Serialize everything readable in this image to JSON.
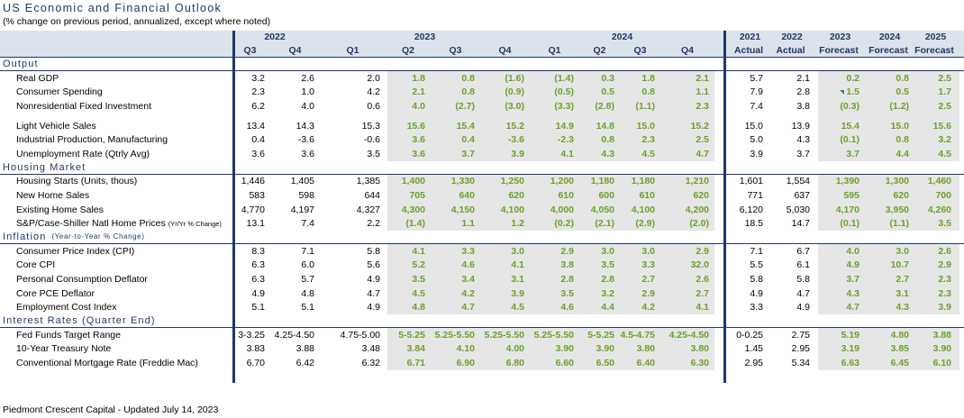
{
  "title": "US Economic and Financial Outlook",
  "subtitle": "(% change on previous  period, annualized, except where noted)",
  "years": {
    "y2022": "2022",
    "y2023": "2023",
    "y2024": "2024"
  },
  "annual_headers": [
    [
      "2021",
      "Actual"
    ],
    [
      "2022",
      "Actual"
    ],
    [
      "2023",
      "Forecast"
    ],
    [
      "2024",
      "Forecast"
    ],
    [
      "2025",
      "Forecast"
    ]
  ],
  "quarters": [
    "Q3",
    "Q4",
    "Q1",
    "Q2",
    "Q3",
    "Q4",
    "Q1",
    "Q2",
    "Q3",
    "Q4"
  ],
  "sections": [
    {
      "name": "Output",
      "note": "",
      "rows": [
        {
          "label": "Real GDP",
          "values": [
            "3.2",
            "2.6",
            "2.0",
            "1.8",
            "0.8",
            "(1.6)",
            "(1.4)",
            "0.3",
            "1.8",
            "2.1",
            "5.7",
            "2.1",
            "0.2",
            "0.8",
            "2.5"
          ]
        },
        {
          "label": "Consumer Spending",
          "values": [
            "2.3",
            "1.0",
            "4.2",
            "2.1",
            "0.8",
            "(0.9)",
            "(0.5)",
            "0.5",
            "0.8",
            "1.1",
            "7.9",
            "2.8",
            "1.5",
            "0.5",
            "1.7"
          ]
        },
        {
          "label": "Nonresidential Fixed Investment",
          "values": [
            "6.2",
            "4.0",
            "0.6",
            "4.0",
            "(2.7)",
            "(3.0)",
            "(3.3)",
            "(2.8)",
            "(1.1)",
            "2.3",
            "7.4",
            "3.8",
            "(0.3)",
            "(1.2)",
            "2.5"
          ]
        },
        {
          "gap": true
        },
        {
          "label": "Light Vehicle Sales",
          "values": [
            "13.4",
            "14.3",
            "15.3",
            "15.6",
            "15.4",
            "15.2",
            "14.9",
            "14.8",
            "15.0",
            "15.2",
            "15.0",
            "13.9",
            "15.4",
            "15.0",
            "15.6"
          ]
        },
        {
          "label": "Industrial Production, Manufacturing",
          "values": [
            "0.4",
            "-3.6",
            "-0.6",
            "3.6",
            "0.4",
            "-3.6",
            "-2.3",
            "0.8",
            "2.3",
            "2.5",
            "5.0",
            "4.3",
            "(0.1)",
            "0.8",
            "3.2"
          ]
        },
        {
          "label": "Unemployment Rate (Qtrly Avg)",
          "values": [
            "3.6",
            "3.6",
            "3.5",
            "3.6",
            "3.7",
            "3.9",
            "4.1",
            "4.3",
            "4.5",
            "4.7",
            "3.9",
            "3.7",
            "3.7",
            "4.4",
            "4.5"
          ]
        }
      ]
    },
    {
      "name": "Housing Market",
      "note": "",
      "rows": [
        {
          "label": "Housing Starts (Units, thous)",
          "values": [
            "1,446",
            "1,405",
            "1,385",
            "1,400",
            "1,330",
            "1,250",
            "1,200",
            "1,180",
            "1,180",
            "1,210",
            "1,601",
            "1,554",
            "1,390",
            "1,300",
            "1,460"
          ]
        },
        {
          "label": "New Home Sales",
          "values": [
            "583",
            "598",
            "644",
            "705",
            "640",
            "620",
            "610",
            "600",
            "610",
            "620",
            "771",
            "637",
            "595",
            "620",
            "700"
          ]
        },
        {
          "label": "Existing Home Sales",
          "values": [
            "4,770",
            "4,197",
            "4,327",
            "4,300",
            "4,150",
            "4,100",
            "4,000",
            "4,050",
            "4,100",
            "4,200",
            "6,120",
            "5,030",
            "4,170",
            "3,950",
            "4,260"
          ]
        },
        {
          "label": "S&P/Case-Shiller Natl Home Prices",
          "label_small": "(Yr/Yr % Change)",
          "values": [
            "13.1",
            "7.4",
            "2.2",
            "(1.4)",
            "1.1",
            "1.2",
            "(0.2)",
            "(2.1)",
            "(2.9)",
            "(2.0)",
            "18.5",
            "14.7",
            "(0.1)",
            "(1.1)",
            "3.5"
          ]
        }
      ]
    },
    {
      "name": "Inflation",
      "note": "(Year-to-Year % Change)",
      "rows": [
        {
          "label": "Consumer Price Index (CPI)",
          "values": [
            "8.3",
            "7.1",
            "5.8",
            "4.1",
            "3.3",
            "3.0",
            "2.9",
            "3.0",
            "3.0",
            "2.9",
            "7.1",
            "6.7",
            "4.0",
            "3.0",
            "2.6"
          ]
        },
        {
          "label": "Core CPI",
          "values": [
            "6.3",
            "6.0",
            "5.6",
            "5.2",
            "4.6",
            "4.1",
            "3.8",
            "3.5",
            "3.3",
            "32.0",
            "5.5",
            "6.1",
            "4.9",
            "10.7",
            "2.9"
          ]
        },
        {
          "label": "Personal Consumption Deflator",
          "values": [
            "6.3",
            "5.7",
            "4.9",
            "3.5",
            "3.4",
            "3.1",
            "2.8",
            "2.8",
            "2.7",
            "2.6",
            "5.8",
            "5.8",
            "3.7",
            "2.7",
            "2.3"
          ]
        },
        {
          "label": "Core PCE Deflator",
          "values": [
            "4.9",
            "4.8",
            "4.7",
            "4.5",
            "4.2",
            "3.9",
            "3.5",
            "3.2",
            "2.9",
            "2.7",
            "4.9",
            "4.7",
            "4.3",
            "3.1",
            "2.3"
          ]
        },
        {
          "label": "Employment Cost Index",
          "values": [
            "5.1",
            "5.1",
            "4.9",
            "4.8",
            "4.7",
            "4.5",
            "4.6",
            "4.4",
            "4.2",
            "4.1",
            "3.3",
            "4.9",
            "4.7",
            "4.3",
            "3.9"
          ]
        }
      ]
    },
    {
      "name": "Interest Rates (Quarter End)",
      "note": "",
      "rows": [
        {
          "label": "Fed Funds Target Range",
          "values": [
            "3-3.25",
            "4.25-4.50",
            "4.75-5.00",
            "5-5.25",
            "5.25-5.50",
            "5.25-5.50",
            "5.25-5.50",
            "5-5.25",
            "4.5-4.75",
            "4.25-4.50",
            "0-0.25",
            "2.75",
            "5.19",
            "4.80",
            "3.88"
          ]
        },
        {
          "label": "10-Year Treasury Note",
          "values": [
            "3.83",
            "3.88",
            "3.48",
            "3.84",
            "4.10",
            "4.00",
            "3.90",
            "3.90",
            "3.80",
            "3.80",
            "1.45",
            "2.95",
            "3.19",
            "3.85",
            "3.90"
          ]
        },
        {
          "label": "Conventional Mortgage Rate (Freddie Mac)",
          "values": [
            "6.70",
            "6.42",
            "6.32",
            "6.71",
            "6.90",
            "6.80",
            "6.60",
            "6.50",
            "6.40",
            "6.30",
            "2.95",
            "5.34",
            "6.63",
            "6.45",
            "6.10"
          ]
        }
      ]
    }
  ],
  "footer": "Piedmont Crescent Capital - Updated July 14, 2023",
  "colors": {
    "header_blue": "#1f3864",
    "header_bg": "#dde3ec",
    "forecast_green": "#6aa12a",
    "shade": "#e6e6e6"
  }
}
